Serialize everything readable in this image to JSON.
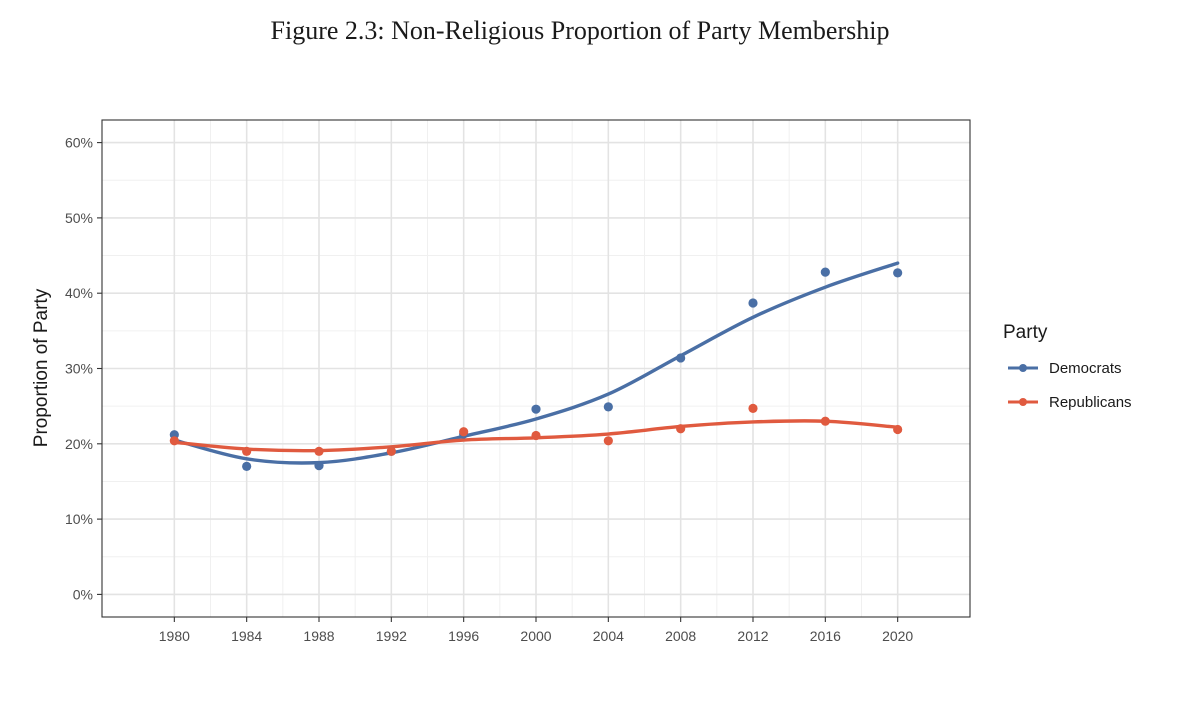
{
  "figure": {
    "title": "Figure 2.3: Non-Religious Proportion of Party Membership"
  },
  "chart_data": {
    "type": "scatter",
    "x": [
      1980,
      1984,
      1988,
      1992,
      1996,
      2000,
      2004,
      2008,
      2012,
      2016,
      2020
    ],
    "x_tick_labels": [
      "1980",
      "1984",
      "1988",
      "1992",
      "1996",
      "2000",
      "2004",
      "2008",
      "2012",
      "2016",
      "2020"
    ],
    "y_ticks": [
      0,
      10,
      20,
      30,
      40,
      50,
      60
    ],
    "y_tick_labels": [
      "0%",
      "10%",
      "20%",
      "30%",
      "40%",
      "50%",
      "60%"
    ],
    "ylabel": "Proportion of Party",
    "xlabel": "",
    "xlim": [
      1976,
      2024
    ],
    "ylim": [
      -3,
      63
    ],
    "grid": true,
    "legend": {
      "title": "Party",
      "position": "right"
    },
    "series": [
      {
        "name": "Democrats",
        "color": "#4a6fa5",
        "points": [
          21.2,
          17.0,
          17.1,
          19.0,
          21.3,
          24.6,
          24.9,
          31.4,
          38.7,
          42.8,
          42.7
        ],
        "smooth": [
          20.5,
          18.0,
          17.5,
          18.8,
          21.0,
          23.3,
          26.6,
          31.7,
          36.8,
          40.8,
          44.0
        ]
      },
      {
        "name": "Republicans",
        "color": "#e05a3f",
        "points": [
          20.4,
          19.0,
          19.0,
          19.0,
          21.6,
          21.1,
          20.4,
          22.0,
          24.7,
          23.0,
          21.9
        ],
        "smooth": [
          20.2,
          19.3,
          19.1,
          19.6,
          20.5,
          20.8,
          21.3,
          22.3,
          22.9,
          23.0,
          22.2
        ]
      }
    ]
  }
}
